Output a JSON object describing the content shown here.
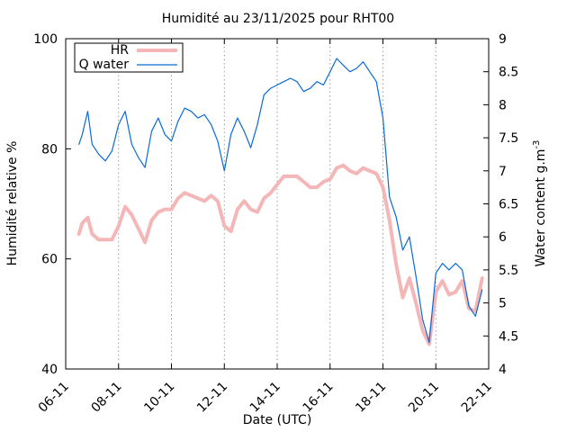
{
  "chart_data": {
    "type": "line",
    "title": "Humidité au 23/11/2025 pour RHT00",
    "xlabel": "Date (UTC)",
    "ylabel_left": "Humidité relative %",
    "ylabel_right_main": "Water content g.m",
    "ylabel_right_sup": "-3",
    "x_range": [
      "2025-11-06",
      "2025-11-22"
    ],
    "x_ticks": [
      "06-11",
      "08-11",
      "10-11",
      "12-11",
      "14-11",
      "16-11",
      "18-11",
      "20-11",
      "22-11"
    ],
    "ylim_left": [
      40,
      100
    ],
    "yticks_left": [
      "40",
      "60",
      "80",
      "100"
    ],
    "ylim_right": [
      4,
      9
    ],
    "yticks_right": [
      "4",
      "4.5",
      "5",
      "5.5",
      "6",
      "6.5",
      "7",
      "7.5",
      "8",
      "8.5",
      "9"
    ],
    "grid": "vertical dotted lines at x ticks",
    "legend_position": "top-left",
    "series": [
      {
        "name": "HR",
        "axis": "left",
        "color": "#f4b6b6",
        "points": [
          [
            "2025-11-06 12:00",
            64.5
          ],
          [
            "2025-11-06 15:00",
            66.5
          ],
          [
            "2025-11-06 20:00",
            67.5
          ],
          [
            "2025-11-07 00:00",
            64.5
          ],
          [
            "2025-11-07 06:00",
            63.5
          ],
          [
            "2025-11-07 12:00",
            63.5
          ],
          [
            "2025-11-07 18:00",
            63.5
          ],
          [
            "2025-11-08 00:00",
            66.0
          ],
          [
            "2025-11-08 06:00",
            69.5
          ],
          [
            "2025-11-08 12:00",
            68.0
          ],
          [
            "2025-11-08 18:00",
            65.5
          ],
          [
            "2025-11-09 00:00",
            63.0
          ],
          [
            "2025-11-09 06:00",
            67.0
          ],
          [
            "2025-11-09 12:00",
            68.5
          ],
          [
            "2025-11-09 18:00",
            69.0
          ],
          [
            "2025-11-10 00:00",
            69.0
          ],
          [
            "2025-11-10 06:00",
            71.0
          ],
          [
            "2025-11-10 12:00",
            72.0
          ],
          [
            "2025-11-10 18:00",
            71.5
          ],
          [
            "2025-11-11 00:00",
            71.0
          ],
          [
            "2025-11-11 06:00",
            70.5
          ],
          [
            "2025-11-11 12:00",
            71.5
          ],
          [
            "2025-11-11 18:00",
            70.5
          ],
          [
            "2025-11-12 00:00",
            66.0
          ],
          [
            "2025-11-12 06:00",
            65.0
          ],
          [
            "2025-11-12 12:00",
            69.0
          ],
          [
            "2025-11-12 18:00",
            70.5
          ],
          [
            "2025-11-13 00:00",
            69.0
          ],
          [
            "2025-11-13 06:00",
            68.5
          ],
          [
            "2025-11-13 12:00",
            71.0
          ],
          [
            "2025-11-13 18:00",
            72.0
          ],
          [
            "2025-11-14 00:00",
            73.5
          ],
          [
            "2025-11-14 06:00",
            75.0
          ],
          [
            "2025-11-14 12:00",
            75.0
          ],
          [
            "2025-11-14 18:00",
            75.0
          ],
          [
            "2025-11-15 00:00",
            74.0
          ],
          [
            "2025-11-15 06:00",
            73.0
          ],
          [
            "2025-11-15 12:00",
            73.0
          ],
          [
            "2025-11-15 18:00",
            74.0
          ],
          [
            "2025-11-16 00:00",
            74.5
          ],
          [
            "2025-11-16 06:00",
            76.5
          ],
          [
            "2025-11-16 12:00",
            77.0
          ],
          [
            "2025-11-16 18:00",
            76.0
          ],
          [
            "2025-11-17 00:00",
            75.5
          ],
          [
            "2025-11-17 06:00",
            76.5
          ],
          [
            "2025-11-17 12:00",
            76.0
          ],
          [
            "2025-11-17 18:00",
            75.5
          ],
          [
            "2025-11-18 00:00",
            73.0
          ],
          [
            "2025-11-18 06:00",
            67.0
          ],
          [
            "2025-11-18 12:00",
            59.0
          ],
          [
            "2025-11-18 18:00",
            53.0
          ],
          [
            "2025-11-19 00:00",
            56.5
          ],
          [
            "2025-11-19 06:00",
            52.0
          ],
          [
            "2025-11-19 12:00",
            47.0
          ],
          [
            "2025-11-19 18:00",
            44.5
          ],
          [
            "2025-11-20 00:00",
            54.0
          ],
          [
            "2025-11-20 06:00",
            56.0
          ],
          [
            "2025-11-20 12:00",
            53.5
          ],
          [
            "2025-11-20 18:00",
            54.0
          ],
          [
            "2025-11-21 00:00",
            56.0
          ],
          [
            "2025-11-21 06:00",
            51.0
          ],
          [
            "2025-11-21 12:00",
            50.5
          ],
          [
            "2025-11-21 18:00",
            56.5
          ]
        ]
      },
      {
        "name": "Q water",
        "axis": "right",
        "color": "#0a6ad6",
        "points": [
          [
            "2025-11-06 12:00",
            7.4
          ],
          [
            "2025-11-06 15:00",
            7.55
          ],
          [
            "2025-11-06 20:00",
            7.9
          ],
          [
            "2025-11-07 00:00",
            7.4
          ],
          [
            "2025-11-07 06:00",
            7.25
          ],
          [
            "2025-11-07 12:00",
            7.15
          ],
          [
            "2025-11-07 18:00",
            7.3
          ],
          [
            "2025-11-08 00:00",
            7.7
          ],
          [
            "2025-11-08 06:00",
            7.9
          ],
          [
            "2025-11-08 12:00",
            7.4
          ],
          [
            "2025-11-08 18:00",
            7.2
          ],
          [
            "2025-11-09 00:00",
            7.05
          ],
          [
            "2025-11-09 06:00",
            7.6
          ],
          [
            "2025-11-09 12:00",
            7.8
          ],
          [
            "2025-11-09 18:00",
            7.55
          ],
          [
            "2025-11-10 00:00",
            7.45
          ],
          [
            "2025-11-10 06:00",
            7.75
          ],
          [
            "2025-11-10 12:00",
            7.95
          ],
          [
            "2025-11-10 18:00",
            7.9
          ],
          [
            "2025-11-11 00:00",
            7.8
          ],
          [
            "2025-11-11 06:00",
            7.85
          ],
          [
            "2025-11-11 12:00",
            7.7
          ],
          [
            "2025-11-11 18:00",
            7.45
          ],
          [
            "2025-11-12 00:00",
            7.0
          ],
          [
            "2025-11-12 06:00",
            7.55
          ],
          [
            "2025-11-12 12:00",
            7.8
          ],
          [
            "2025-11-12 18:00",
            7.6
          ],
          [
            "2025-11-13 00:00",
            7.35
          ],
          [
            "2025-11-13 06:00",
            7.7
          ],
          [
            "2025-11-13 12:00",
            8.15
          ],
          [
            "2025-11-13 18:00",
            8.25
          ],
          [
            "2025-11-14 00:00",
            8.3
          ],
          [
            "2025-11-14 06:00",
            8.35
          ],
          [
            "2025-11-14 12:00",
            8.4
          ],
          [
            "2025-11-14 18:00",
            8.35
          ],
          [
            "2025-11-15 00:00",
            8.2
          ],
          [
            "2025-11-15 06:00",
            8.25
          ],
          [
            "2025-11-15 12:00",
            8.35
          ],
          [
            "2025-11-15 18:00",
            8.3
          ],
          [
            "2025-11-16 00:00",
            8.5
          ],
          [
            "2025-11-16 06:00",
            8.7
          ],
          [
            "2025-11-16 12:00",
            8.6
          ],
          [
            "2025-11-16 18:00",
            8.5
          ],
          [
            "2025-11-17 00:00",
            8.55
          ],
          [
            "2025-11-17 06:00",
            8.65
          ],
          [
            "2025-11-17 12:00",
            8.5
          ],
          [
            "2025-11-17 18:00",
            8.35
          ],
          [
            "2025-11-18 00:00",
            7.8
          ],
          [
            "2025-11-18 06:00",
            6.6
          ],
          [
            "2025-11-18 12:00",
            6.3
          ],
          [
            "2025-11-18 18:00",
            5.8
          ],
          [
            "2025-11-19 00:00",
            6.0
          ],
          [
            "2025-11-19 06:00",
            5.4
          ],
          [
            "2025-11-19 12:00",
            4.75
          ],
          [
            "2025-11-19 18:00",
            4.4
          ],
          [
            "2025-11-20 00:00",
            5.45
          ],
          [
            "2025-11-20 06:00",
            5.6
          ],
          [
            "2025-11-20 12:00",
            5.5
          ],
          [
            "2025-11-20 18:00",
            5.6
          ],
          [
            "2025-11-21 00:00",
            5.5
          ],
          [
            "2025-11-21 06:00",
            4.95
          ],
          [
            "2025-11-21 12:00",
            4.8
          ],
          [
            "2025-11-21 18:00",
            5.2
          ]
        ]
      }
    ]
  }
}
